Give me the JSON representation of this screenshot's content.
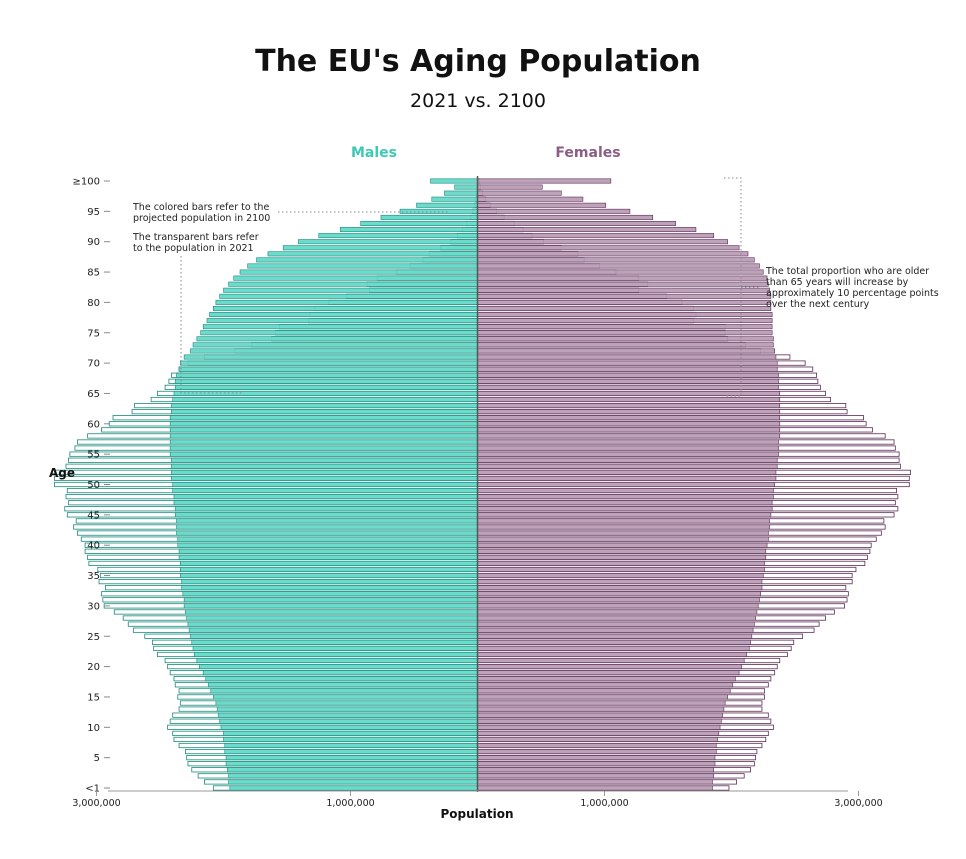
{
  "title": "The EU's Aging Population",
  "subtitle": "2021 vs. 2100",
  "colors": {
    "males": "#5fd8c7",
    "males_label": "#3ec9b6",
    "males_edge": "#1a8a7c",
    "females": "#b99ab4",
    "females_label": "#8a5d84",
    "females_edge": "#5a2d55",
    "axis": "#999999",
    "annotation": "#333333"
  },
  "annotations": {
    "colored": [
      "The colored bars refer to the",
      "projected population in 2100"
    ],
    "transparent": [
      "The transparent bars refer",
      "to the population in 2021"
    ],
    "older": [
      "The total proportion who are older",
      "than 65 years will increase by",
      "approximately 10 percentage points",
      "over the next century"
    ]
  },
  "chart_data": {
    "type": "bar",
    "orientation": "horizontal",
    "layout": "population pyramid",
    "ylabel": "Age",
    "xlabel": "Population",
    "y_tick_labels": [
      "<1",
      "5",
      "10",
      "15",
      "20",
      "25",
      "30",
      "35",
      "40",
      "45",
      "50",
      "55",
      "60",
      "65",
      "70",
      "75",
      "80",
      "85",
      "90",
      "95",
      "≥100"
    ],
    "x_tick_labels": [
      "3,000,000",
      "1,000,000",
      "1,000,000",
      "3,000,000"
    ],
    "xlim": [
      -4000000,
      4000000
    ],
    "ages": [
      0,
      1,
      2,
      3,
      4,
      5,
      6,
      7,
      8,
      9,
      10,
      11,
      12,
      13,
      14,
      15,
      16,
      17,
      18,
      19,
      20,
      21,
      22,
      23,
      24,
      25,
      26,
      27,
      28,
      29,
      30,
      31,
      32,
      33,
      34,
      35,
      36,
      37,
      38,
      39,
      40,
      41,
      42,
      43,
      44,
      45,
      46,
      47,
      48,
      49,
      50,
      51,
      52,
      53,
      54,
      55,
      56,
      57,
      58,
      59,
      60,
      61,
      62,
      63,
      64,
      65,
      66,
      67,
      68,
      69,
      70,
      71,
      72,
      73,
      74,
      75,
      76,
      77,
      78,
      79,
      80,
      81,
      82,
      83,
      84,
      85,
      86,
      87,
      88,
      89,
      90,
      91,
      92,
      93,
      94,
      95,
      96,
      97,
      98,
      99,
      100
    ],
    "series": [
      {
        "name": "Males",
        "year": "2021",
        "style": "transparent",
        "values": [
          2080000,
          2150000,
          2200000,
          2250000,
          2280000,
          2290000,
          2300000,
          2350000,
          2390000,
          2400000,
          2440000,
          2420000,
          2400000,
          2350000,
          2340000,
          2360000,
          2350000,
          2380000,
          2390000,
          2420000,
          2440000,
          2460000,
          2520000,
          2550000,
          2560000,
          2620000,
          2710000,
          2750000,
          2790000,
          2860000,
          2940000,
          2950000,
          2960000,
          2930000,
          2980000,
          2970000,
          2990000,
          3060000,
          3070000,
          3090000,
          3090000,
          3120000,
          3150000,
          3180000,
          3160000,
          3230000,
          3250000,
          3220000,
          3240000,
          3230000,
          3330000,
          3330000,
          3330000,
          3240000,
          3220000,
          3210000,
          3170000,
          3150000,
          3070000,
          2960000,
          2900000,
          2870000,
          2720000,
          2700000,
          2570000,
          2520000,
          2460000,
          2430000,
          2410000,
          2350000,
          2280000,
          2150000,
          1910000,
          1780000,
          1620000,
          1590000,
          1560000,
          1330000,
          1320000,
          1280000,
          1170000,
          1030000,
          850000,
          870000,
          790000,
          640000,
          530000,
          430000,
          380000,
          290000,
          210000,
          160000,
          120000,
          85000,
          58000,
          40000,
          22000,
          12000,
          7000,
          4000,
          2000
        ]
      },
      {
        "name": "Females",
        "year": "2021",
        "style": "transparent",
        "values": [
          1980000,
          2040000,
          2100000,
          2150000,
          2180000,
          2190000,
          2200000,
          2240000,
          2270000,
          2290000,
          2330000,
          2310000,
          2290000,
          2240000,
          2240000,
          2260000,
          2260000,
          2290000,
          2310000,
          2340000,
          2360000,
          2380000,
          2440000,
          2470000,
          2490000,
          2560000,
          2650000,
          2690000,
          2740000,
          2810000,
          2890000,
          2910000,
          2920000,
          2900000,
          2950000,
          2950000,
          2980000,
          3050000,
          3070000,
          3090000,
          3100000,
          3140000,
          3180000,
          3210000,
          3200000,
          3280000,
          3310000,
          3290000,
          3310000,
          3300000,
          3400000,
          3400000,
          3410000,
          3330000,
          3320000,
          3320000,
          3290000,
          3280000,
          3210000,
          3110000,
          3060000,
          3040000,
          2910000,
          2900000,
          2780000,
          2740000,
          2700000,
          2680000,
          2670000,
          2640000,
          2580000,
          2460000,
          2230000,
          2110000,
          1970000,
          1950000,
          1950000,
          1700000,
          1720000,
          1700000,
          1610000,
          1490000,
          1270000,
          1340000,
          1270000,
          1090000,
          960000,
          840000,
          790000,
          660000,
          520000,
          430000,
          360000,
          290000,
          210000,
          150000,
          100000,
          65000,
          40000,
          25000,
          15000
        ]
      },
      {
        "name": "Males",
        "year": "2100",
        "style": "colored",
        "values": [
          1950000,
          1960000,
          1960000,
          1970000,
          1980000,
          1980000,
          1990000,
          1990000,
          2000000,
          2000000,
          2020000,
          2030000,
          2040000,
          2050000,
          2060000,
          2080000,
          2100000,
          2120000,
          2140000,
          2160000,
          2190000,
          2210000,
          2230000,
          2240000,
          2250000,
          2260000,
          2270000,
          2280000,
          2290000,
          2300000,
          2310000,
          2310000,
          2320000,
          2330000,
          2330000,
          2340000,
          2340000,
          2340000,
          2350000,
          2350000,
          2360000,
          2360000,
          2370000,
          2370000,
          2370000,
          2380000,
          2380000,
          2390000,
          2390000,
          2400000,
          2400000,
          2410000,
          2410000,
          2410000,
          2410000,
          2420000,
          2420000,
          2420000,
          2420000,
          2420000,
          2420000,
          2420000,
          2410000,
          2410000,
          2400000,
          2390000,
          2380000,
          2380000,
          2370000,
          2350000,
          2340000,
          2310000,
          2260000,
          2240000,
          2210000,
          2180000,
          2160000,
          2130000,
          2110000,
          2080000,
          2060000,
          2030000,
          2000000,
          1960000,
          1920000,
          1870000,
          1810000,
          1740000,
          1650000,
          1530000,
          1410000,
          1250000,
          1080000,
          920000,
          760000,
          610000,
          480000,
          360000,
          260000,
          180000,
          370000
        ]
      },
      {
        "name": "Females",
        "year": "2100",
        "style": "colored",
        "values": [
          1850000,
          1850000,
          1860000,
          1860000,
          1870000,
          1870000,
          1880000,
          1880000,
          1890000,
          1900000,
          1910000,
          1920000,
          1930000,
          1940000,
          1950000,
          1970000,
          1990000,
          2010000,
          2030000,
          2060000,
          2080000,
          2100000,
          2120000,
          2140000,
          2150000,
          2160000,
          2170000,
          2180000,
          2190000,
          2200000,
          2210000,
          2220000,
          2230000,
          2240000,
          2240000,
          2250000,
          2260000,
          2260000,
          2270000,
          2270000,
          2280000,
          2290000,
          2290000,
          2300000,
          2300000,
          2310000,
          2320000,
          2320000,
          2330000,
          2330000,
          2340000,
          2350000,
          2350000,
          2360000,
          2360000,
          2370000,
          2370000,
          2370000,
          2380000,
          2380000,
          2380000,
          2380000,
          2380000,
          2380000,
          2380000,
          2380000,
          2370000,
          2370000,
          2370000,
          2360000,
          2360000,
          2350000,
          2340000,
          2330000,
          2330000,
          2320000,
          2320000,
          2320000,
          2320000,
          2310000,
          2310000,
          2310000,
          2300000,
          2290000,
          2280000,
          2250000,
          2220000,
          2180000,
          2130000,
          2060000,
          1970000,
          1860000,
          1720000,
          1560000,
          1380000,
          1200000,
          1010000,
          830000,
          660000,
          510000,
          1050000
        ]
      }
    ],
    "legend": "series labels above bars: Males (left), Females (right)",
    "grid": false
  }
}
